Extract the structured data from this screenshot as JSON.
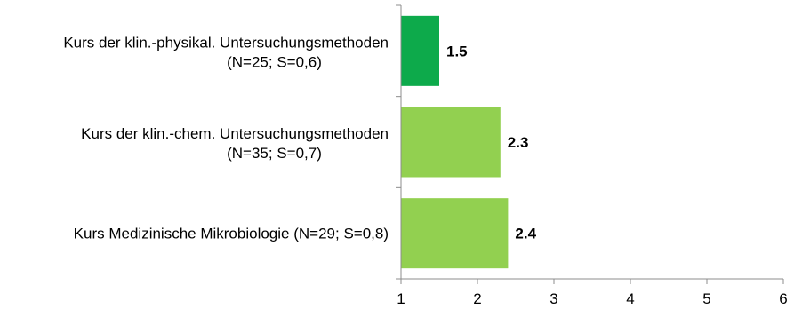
{
  "chart_data": {
    "type": "bar",
    "orientation": "horizontal",
    "categories": [
      {
        "line1": "Kurs der klin.-physikal. Untersuchungsmethoden",
        "line2": "(N=25; S=0,6)"
      },
      {
        "line1": "Kurs der klin.-chem. Untersuchungsmethoden",
        "line2": "(N=35; S=0,7)"
      },
      {
        "line1": "Kurs Medizinische Mikrobiologie (N=29; S=0,8)",
        "line2": ""
      }
    ],
    "values": [
      1.5,
      2.3,
      2.4
    ],
    "value_labels": [
      "1.5",
      "2.3",
      "2.4"
    ],
    "bar_colors": [
      "#0daa4b",
      "#92d050",
      "#92d050"
    ],
    "xlim": [
      1,
      6
    ],
    "x_ticks": [
      "1",
      "2",
      "3",
      "4",
      "5",
      "6"
    ],
    "title": "",
    "xlabel": "",
    "ylabel": "",
    "grid": false,
    "legend": "none"
  }
}
